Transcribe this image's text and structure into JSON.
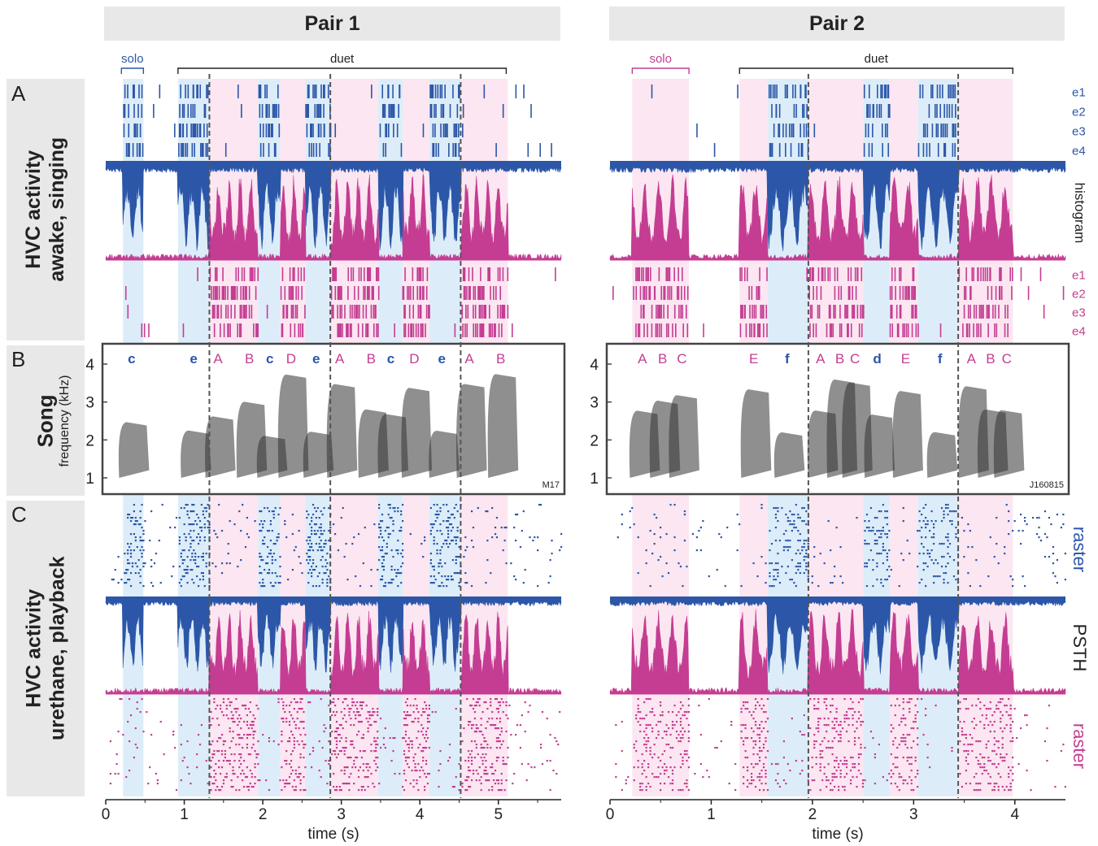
{
  "headers": {
    "pair1": "Pair 1",
    "pair2": "Pair 2"
  },
  "row_labels": {
    "A": {
      "letter": "A",
      "line1": "HVC activity",
      "line2": "awake, singing"
    },
    "B": {
      "letter": "B",
      "line1": "Song"
    },
    "C": {
      "letter": "C",
      "line1": "HVC activity",
      "line2": "urethane, playback"
    }
  },
  "brackets": {
    "solo": "solo",
    "duet": "duet"
  },
  "electrodes": [
    "e1",
    "e2",
    "e3",
    "e4"
  ],
  "side_labels": {
    "histogram": "histogram",
    "raster": "raster",
    "psth": "PSTH"
  },
  "spectrogram": {
    "ylabel": "frequency (kHz)",
    "yticks": [
      "1",
      "2",
      "3",
      "4"
    ]
  },
  "colors": {
    "male": "#2c56a8",
    "female": "#c43d92",
    "male_shade": "#dcedf9",
    "female_shade": "#fbe6f1",
    "header_bg": "#e8e8e8"
  },
  "xaxis_label": "time (s)",
  "pair1": {
    "bird_id": "M17",
    "x_max": 5.8,
    "xticks": [
      "0",
      "1",
      "2",
      "3",
      "4",
      "5"
    ],
    "solo_range": [
      0.2,
      0.48
    ],
    "duet_range": [
      0.92,
      5.1
    ],
    "dashes": [
      1.32,
      2.86,
      4.52
    ],
    "segments": [
      {
        "start": 0.22,
        "end": 0.48,
        "sex": "m"
      },
      {
        "start": 0.92,
        "end": 1.32,
        "sex": "m"
      },
      {
        "start": 1.32,
        "end": 1.94,
        "sex": "f"
      },
      {
        "start": 1.94,
        "end": 2.22,
        "sex": "m"
      },
      {
        "start": 2.22,
        "end": 2.54,
        "sex": "f"
      },
      {
        "start": 2.54,
        "end": 2.86,
        "sex": "m"
      },
      {
        "start": 2.86,
        "end": 3.47,
        "sex": "f"
      },
      {
        "start": 3.47,
        "end": 3.78,
        "sex": "m"
      },
      {
        "start": 3.78,
        "end": 4.12,
        "sex": "f"
      },
      {
        "start": 4.12,
        "end": 4.52,
        "sex": "m"
      },
      {
        "start": 4.52,
        "end": 5.12,
        "sex": "f"
      }
    ],
    "syllables": [
      {
        "t": 0.33,
        "label": "c",
        "sex": "m"
      },
      {
        "t": 1.12,
        "label": "e",
        "sex": "m"
      },
      {
        "t": 1.43,
        "label": "A",
        "sex": "f"
      },
      {
        "t": 1.83,
        "label": "B",
        "sex": "f"
      },
      {
        "t": 2.09,
        "label": "c",
        "sex": "m"
      },
      {
        "t": 2.36,
        "label": "D",
        "sex": "f"
      },
      {
        "t": 2.68,
        "label": "e",
        "sex": "m"
      },
      {
        "t": 2.98,
        "label": "A",
        "sex": "f"
      },
      {
        "t": 3.38,
        "label": "B",
        "sex": "f"
      },
      {
        "t": 3.63,
        "label": "c",
        "sex": "m"
      },
      {
        "t": 3.93,
        "label": "D",
        "sex": "f"
      },
      {
        "t": 4.28,
        "label": "e",
        "sex": "m"
      },
      {
        "t": 4.63,
        "label": "A",
        "sex": "f"
      },
      {
        "t": 5.03,
        "label": "B",
        "sex": "f"
      }
    ]
  },
  "pair2": {
    "bird_id": "J160815",
    "x_max": 4.5,
    "xticks": [
      "0",
      "1",
      "2",
      "3",
      "4"
    ],
    "solo_range": [
      0.22,
      0.78
    ],
    "duet_range": [
      1.28,
      3.98
    ],
    "dashes": [
      1.96,
      3.44
    ],
    "segments": [
      {
        "start": 0.22,
        "end": 0.78,
        "sex": "f"
      },
      {
        "start": 1.28,
        "end": 1.56,
        "sex": "f"
      },
      {
        "start": 1.56,
        "end": 1.96,
        "sex": "m"
      },
      {
        "start": 1.96,
        "end": 2.5,
        "sex": "f"
      },
      {
        "start": 2.5,
        "end": 2.76,
        "sex": "m"
      },
      {
        "start": 2.76,
        "end": 3.04,
        "sex": "f"
      },
      {
        "start": 3.04,
        "end": 3.44,
        "sex": "m"
      },
      {
        "start": 3.44,
        "end": 3.98,
        "sex": "f"
      }
    ],
    "syllables": [
      {
        "t": 0.32,
        "label": "A",
        "sex": "f"
      },
      {
        "t": 0.52,
        "label": "B",
        "sex": "f"
      },
      {
        "t": 0.71,
        "label": "C",
        "sex": "f"
      },
      {
        "t": 1.42,
        "label": "E",
        "sex": "f"
      },
      {
        "t": 1.75,
        "label": "f",
        "sex": "m"
      },
      {
        "t": 2.08,
        "label": "A",
        "sex": "f"
      },
      {
        "t": 2.27,
        "label": "B",
        "sex": "f"
      },
      {
        "t": 2.42,
        "label": "C",
        "sex": "f"
      },
      {
        "t": 2.64,
        "label": "d",
        "sex": "m"
      },
      {
        "t": 2.92,
        "label": "E",
        "sex": "f"
      },
      {
        "t": 3.26,
        "label": "f",
        "sex": "m"
      },
      {
        "t": 3.57,
        "label": "A",
        "sex": "f"
      },
      {
        "t": 3.76,
        "label": "B",
        "sex": "f"
      },
      {
        "t": 3.92,
        "label": "C",
        "sex": "f"
      }
    ]
  }
}
